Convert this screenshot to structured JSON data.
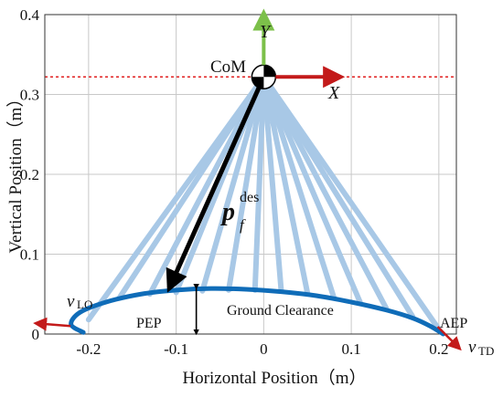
{
  "chart_data": {
    "type": "line",
    "title": "",
    "xlabel": "Horizontal Position（m）",
    "ylabel": "Vertical Position（m）",
    "xlim": [
      -0.25,
      0.22
    ],
    "ylim": [
      0,
      0.4
    ],
    "grid": true,
    "x_ticks": [
      {
        "value": -0.2,
        "label": "-0.2"
      },
      {
        "value": -0.1,
        "label": "-0.1"
      },
      {
        "value": 0,
        "label": "0"
      },
      {
        "value": 0.1,
        "label": "0.1"
      },
      {
        "value": 0.2,
        "label": "0.2"
      }
    ],
    "y_ticks": [
      {
        "value": 0,
        "label": "0"
      },
      {
        "value": 0.1,
        "label": "0.1"
      },
      {
        "value": 0.2,
        "label": "0.2"
      },
      {
        "value": 0.3,
        "label": "0.3"
      },
      {
        "value": 0.4,
        "label": "0.4"
      }
    ],
    "com": {
      "x": 0,
      "y": 0.322,
      "label": "CoM"
    },
    "com_level_line_y": 0.322,
    "foot_trajectory": {
      "x": [
        -0.206,
        -0.22,
        -0.21,
        -0.18,
        -0.14,
        -0.1,
        -0.06,
        -0.02,
        0.02,
        0.06,
        0.1,
        0.14,
        0.17,
        0.19,
        0.205
      ],
      "y": [
        0.002,
        0.012,
        0.027,
        0.04,
        0.05,
        0.055,
        0.057,
        0.056,
        0.053,
        0.048,
        0.04,
        0.03,
        0.02,
        0.01,
        0.0
      ]
    },
    "leg_fan_x": [
      -0.2,
      -0.165,
      -0.13,
      -0.1,
      -0.07,
      -0.04,
      -0.01,
      0.02,
      0.05,
      0.08,
      0.11,
      0.14,
      0.17,
      0.2
    ],
    "leg_fan_y": [
      0.018,
      0.045,
      0.05,
      0.052,
      0.054,
      0.055,
      0.055,
      0.054,
      0.051,
      0.046,
      0.04,
      0.032,
      0.022,
      0.006
    ],
    "pf_des_vector": {
      "from": [
        0,
        0.322
      ],
      "to": [
        -0.108,
        0.057
      ]
    },
    "ground_clearance": {
      "x": -0.077,
      "y_from": 0,
      "y_to": 0.057
    },
    "colors": {
      "trajectory": "#0f6cb8",
      "fan": "#a8c8e6",
      "com_line": "#e02020",
      "velocity": "#c31a1a",
      "y_axis_arrow": "#7cc04a",
      "x_axis_arrow": "#c31a1a",
      "grid": "#c8c8c8"
    },
    "annotations": {
      "com_label": "CoM",
      "axis_y": "Y",
      "axis_x": "X",
      "pf_main": "p",
      "pf_sub": "f",
      "pf_sup": "des",
      "ground_clearance": "Ground Clearance",
      "pep": "PEP",
      "aep": "AEP",
      "v_lo_main": "v",
      "v_lo_sub": "LO",
      "v_td_main": "v",
      "v_td_sub": "TD"
    }
  }
}
